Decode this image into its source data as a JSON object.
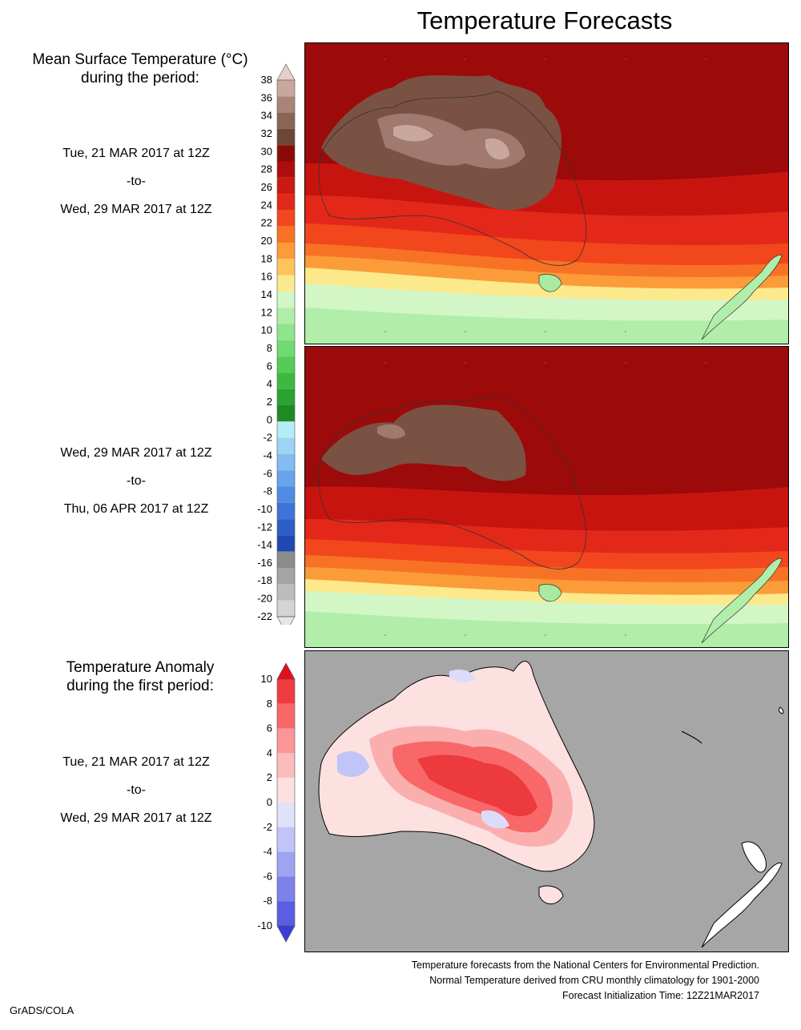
{
  "title": "Temperature Forecasts",
  "panels": {
    "mean": {
      "heading_line1": "Mean Surface Temperature (°C)",
      "heading_line2": "during the period:",
      "period1": {
        "start": "Tue, 21 MAR 2017 at 12Z",
        "sep": "-to-",
        "end": "Wed, 29 MAR 2017 at 12Z"
      },
      "period2": {
        "start": "Wed, 29 MAR 2017 at 12Z",
        "sep": "-to-",
        "end": "Thu, 06 APR 2017 at 12Z"
      }
    },
    "anomaly": {
      "heading_line1": "Temperature Anomaly",
      "heading_line2": "during the first period:",
      "period": {
        "start": "Tue, 21 MAR 2017 at 12Z",
        "sep": "-to-",
        "end": "Wed, 29 MAR 2017 at 12Z"
      }
    }
  },
  "colorbars": {
    "mean": {
      "labels": [
        "38",
        "36",
        "34",
        "32",
        "30",
        "28",
        "26",
        "24",
        "22",
        "20",
        "18",
        "16",
        "14",
        "12",
        "10",
        "8",
        "6",
        "4",
        "2",
        "0",
        "-2",
        "-4",
        "-6",
        "-8",
        "-10",
        "-12",
        "-14",
        "-16",
        "-18",
        "-20",
        "-22"
      ],
      "colors": [
        "#e8cfc8",
        "#c8a89c",
        "#aa8478",
        "#8a6456",
        "#6e4638",
        "#8a0a0a",
        "#ad0d0d",
        "#cc1a12",
        "#e3281a",
        "#f2461c",
        "#f87226",
        "#fb9c38",
        "#fcc45a",
        "#fce98c",
        "#d2f6c6",
        "#b0eeaa",
        "#90e48c",
        "#72da72",
        "#54cc56",
        "#3cba40",
        "#2ca232",
        "#1e8a24",
        "#b6ecf6",
        "#9cd4f4",
        "#82bcf0",
        "#68a4ea",
        "#528ce2",
        "#3e74d8",
        "#2e5ec8",
        "#2048b0",
        "#8c8c8c",
        "#a4a4a4",
        "#bcbcbc",
        "#d4d4d4",
        "#e6e6e6"
      ]
    },
    "anomaly": {
      "labels": [
        "10",
        "8",
        "6",
        "4",
        "2",
        "0",
        "-2",
        "-4",
        "-6",
        "-8",
        "-10"
      ],
      "colors": [
        "#e0101a",
        "#f03c40",
        "#f86868",
        "#fb9696",
        "#fcbcbc",
        "#fde0e0",
        "#e0e2fa",
        "#c0c4f6",
        "#9ea4f0",
        "#7c82ea",
        "#5a5ee2",
        "#3a3cd8"
      ]
    }
  },
  "footer": {
    "line1": "Temperature forecasts from the National Centers for Environmental Prediction.",
    "line2": "Normal Temperature derived from CRU monthly climatology for 1901-2000",
    "line3": "Forecast Initialization Time: 12Z21MAR2017"
  },
  "credit": "GrADS/COLA",
  "colors": {
    "ocean_grey": "#a6a6a6",
    "land_brown": "#7a5244",
    "deep_red": "#a80c0c"
  }
}
